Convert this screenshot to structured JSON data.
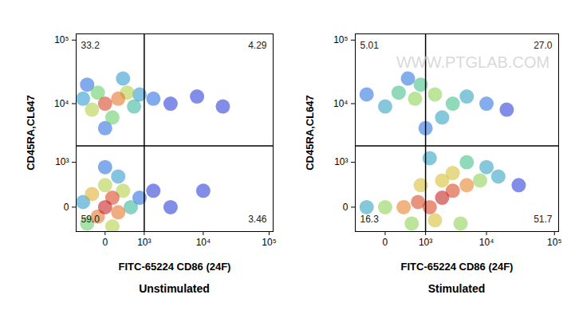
{
  "chart_data": [
    {
      "type": "scatter",
      "title": "Unstimulated",
      "x_label": "FITC-65224 CD86 (24F)",
      "y_label": "CD45RA,CL647",
      "log": true,
      "xlim": [
        -600,
        115000
      ],
      "ylim": [
        -350,
        125000
      ],
      "xticks": [
        0,
        {
          "value": 1000,
          "label": "10³"
        },
        {
          "value": 10000,
          "label": "10⁴"
        },
        {
          "value": 100000,
          "label": "10⁵"
        }
      ],
      "yticks": [
        0,
        {
          "value": 1000,
          "label": "10³"
        },
        {
          "value": 10000,
          "label": "10⁴"
        },
        {
          "value": 100000,
          "label": "10⁵"
        }
      ],
      "gates": {
        "x": 1000,
        "y": 2000
      },
      "quadrants": {
        "upper_left": 33.2,
        "upper_right": 4.29,
        "lower_left": {
          "value": 59.0,
          "label": "59.0"
        },
        "lower_right": 3.46
      },
      "cells": [
        [
          3000,
          10000,
          1
        ],
        [
          8000,
          13000,
          1
        ],
        [
          20000,
          9000,
          1
        ],
        [
          1500,
          12000,
          2
        ],
        [
          0,
          4000,
          2
        ],
        [
          -300,
          20000,
          2
        ],
        [
          -400,
          12000,
          3
        ],
        [
          300,
          25000,
          3
        ],
        [
          800,
          14000,
          3
        ],
        [
          600,
          9000,
          4
        ],
        [
          -100,
          15000,
          5
        ],
        [
          100,
          6000,
          5
        ],
        [
          -200,
          8000,
          6
        ],
        [
          400,
          15000,
          6
        ],
        [
          200,
          12000,
          8
        ],
        [
          0,
          10000,
          9
        ],
        [
          1500,
          200,
          1
        ],
        [
          3000,
          0,
          1
        ],
        [
          10000,
          200,
          1
        ],
        [
          800,
          100,
          2
        ],
        [
          0,
          800,
          2
        ],
        [
          -400,
          50,
          3
        ],
        [
          200,
          500,
          3
        ],
        [
          500,
          0,
          4
        ],
        [
          -300,
          -200,
          5
        ],
        [
          300,
          200,
          6
        ],
        [
          0,
          300,
          6
        ],
        [
          100,
          -250,
          6
        ],
        [
          -200,
          150,
          7
        ],
        [
          -100,
          -100,
          8
        ],
        [
          200,
          -50,
          8
        ],
        [
          100,
          100,
          9
        ],
        [
          0,
          0,
          10
        ]
      ]
    },
    {
      "type": "scatter",
      "title": "Stimulated",
      "x_label": "FITC-65224 CD86 (24F)",
      "y_label": "CD45RA,CL647",
      "log": true,
      "watermark": "WWW.PTGLAB.COM",
      "xlim": [
        -600,
        115000
      ],
      "ylim": [
        -350,
        125000
      ],
      "xticks": [
        0,
        {
          "value": 1000,
          "label": "10³"
        },
        {
          "value": 10000,
          "label": "10⁴"
        },
        {
          "value": 100000,
          "label": "10⁵"
        }
      ],
      "yticks": [
        0,
        {
          "value": 1000,
          "label": "10³"
        },
        {
          "value": 10000,
          "label": "10⁴"
        },
        {
          "value": 100000,
          "label": "10⁵"
        }
      ],
      "gates": {
        "x": 1000,
        "y": 2000
      },
      "quadrants": {
        "upper_left": 5.01,
        "upper_right": {
          "value": 27.0,
          "label": "27.0"
        },
        "lower_left": 16.3,
        "lower_right": 51.7
      },
      "cells": [
        [
          20000,
          8000,
          1
        ],
        [
          400,
          25000,
          2
        ],
        [
          10000,
          10000,
          2
        ],
        [
          1000,
          4000,
          2
        ],
        [
          -300,
          14000,
          2
        ],
        [
          5000,
          13000,
          3
        ],
        [
          0,
          9000,
          3
        ],
        [
          2000,
          6000,
          3
        ],
        [
          200,
          15000,
          4
        ],
        [
          3000,
          10000,
          4
        ],
        [
          800,
          20000,
          4
        ],
        [
          600,
          12000,
          5
        ],
        [
          1500,
          14000,
          5
        ],
        [
          30000,
          300,
          1
        ],
        [
          -300,
          0,
          3
        ],
        [
          15000,
          500,
          3
        ],
        [
          10000,
          800,
          3
        ],
        [
          1200,
          1200,
          3
        ],
        [
          5000,
          1000,
          4
        ],
        [
          0,
          0,
          5
        ],
        [
          8000,
          400,
          5
        ],
        [
          500,
          -200,
          5
        ],
        [
          4000,
          -200,
          5
        ],
        [
          1500,
          -150,
          6
        ],
        [
          3000,
          600,
          6
        ],
        [
          2000,
          400,
          6
        ],
        [
          800,
          300,
          6
        ],
        [
          300,
          0,
          7
        ],
        [
          5000,
          300,
          7
        ],
        [
          700,
          50,
          8
        ],
        [
          1200,
          0,
          8
        ],
        [
          3000,
          200,
          8
        ],
        [
          2000,
          100,
          9
        ]
      ]
    }
  ]
}
